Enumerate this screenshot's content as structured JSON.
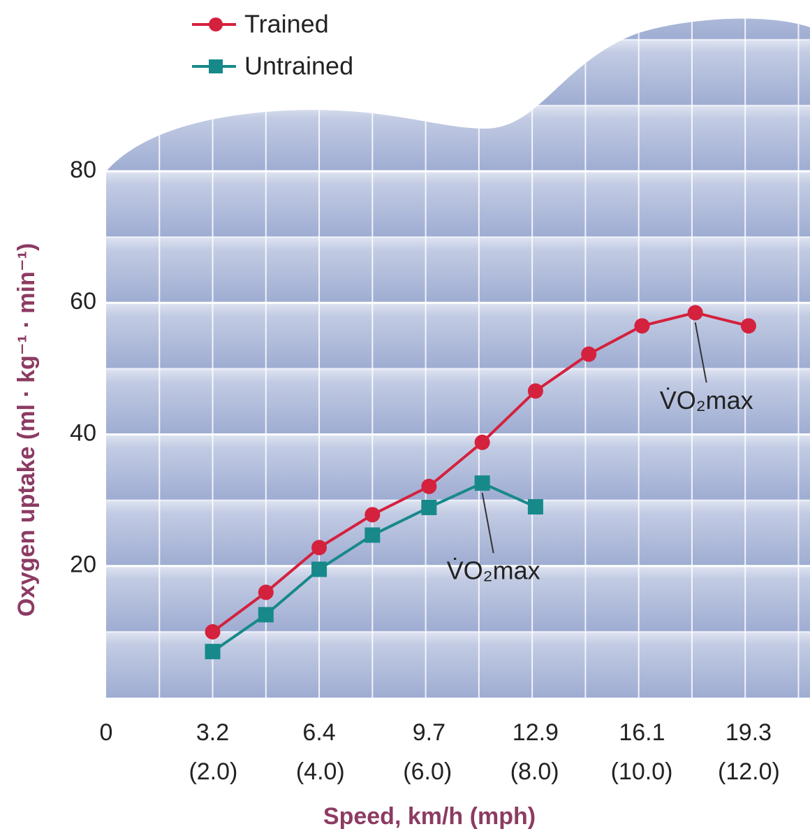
{
  "chart_data": {
    "type": "line",
    "xlabel": "Speed, km/h (mph)",
    "ylabel": "Oxygen uptake (ml · kg⁻¹ · min⁻¹)",
    "x": [
      3.2,
      4.8,
      6.4,
      8.0,
      9.7,
      11.3,
      12.9,
      14.5,
      16.1,
      17.7,
      19.3
    ],
    "series": [
      {
        "name": "Trained",
        "color": "#d4213d",
        "marker": "circle",
        "values": [
          10.0,
          16.0,
          22.8,
          27.8,
          32.1,
          38.8,
          46.6,
          52.2,
          56.5,
          58.5,
          56.5
        ]
      },
      {
        "name": "Untrained",
        "color": "#17898a",
        "marker": "square",
        "values": [
          7.0,
          12.6,
          19.5,
          24.7,
          28.9,
          32.6,
          29.0,
          null,
          null,
          null,
          null
        ]
      }
    ],
    "annotations": [
      "V̇O₂max",
      "V̇O₂max"
    ],
    "xlim": [
      0,
      21
    ],
    "xticks": [
      0,
      3.2,
      6.4,
      9.7,
      12.9,
      16.1,
      19.3
    ],
    "x2lim": [
      0,
      13.05
    ],
    "x2ticks": [
      {
        "value": 2,
        "label": "(2.0)"
      },
      {
        "value": 4,
        "label": "(4.0)"
      },
      {
        "value": 6,
        "label": "(6.0)"
      },
      {
        "value": 8,
        "label": "(8.0)"
      },
      {
        "value": 10,
        "label": "(10.0)"
      },
      {
        "value": 12,
        "label": "(12.0)"
      }
    ],
    "ylim": [
      0,
      80
    ],
    "yticks": [
      20,
      40,
      60,
      80
    ],
    "grid": true
  }
}
